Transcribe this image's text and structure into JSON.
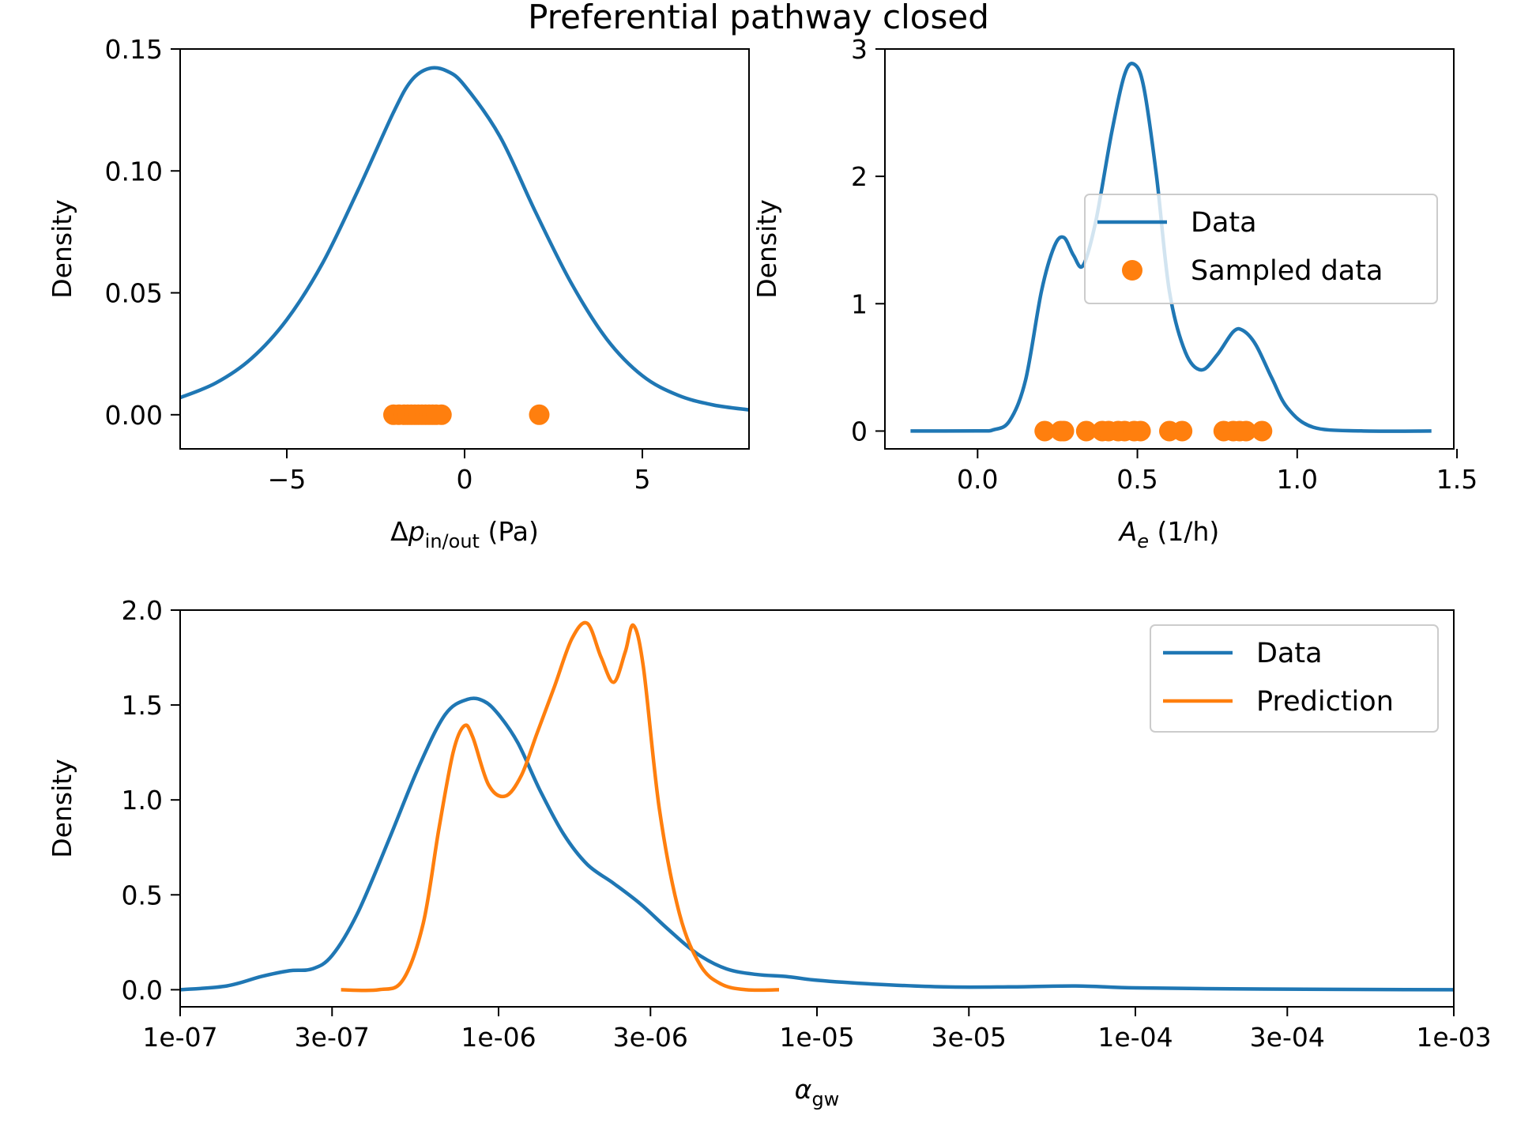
{
  "title": "Preferential pathway closed",
  "colors": {
    "data": "#1f77b4",
    "sampled": "#ff7f0e"
  },
  "chart_data": [
    {
      "type": "line",
      "xlabel": "Δp",
      "xlabel_sub": "in/out",
      "xlabel_unit": " (Pa)",
      "ylabel": "Density",
      "xlim": [
        -8,
        8
      ],
      "ylim": [
        -0.014,
        0.15
      ],
      "xticks": [
        -5,
        0,
        5
      ],
      "xtick_labels": [
        "−5",
        "0",
        "5"
      ],
      "yticks": [
        0,
        0.05,
        0.1,
        0.15
      ],
      "ytick_labels": [
        "0.00",
        "0.05",
        "0.10",
        "0.15"
      ],
      "grid": false,
      "series": [
        {
          "kind": "line",
          "color": "#1f77b4",
          "x": [
            -8,
            -7,
            -6,
            -5,
            -4,
            -3,
            -2,
            -1.5,
            -1,
            -0.5,
            0,
            1,
            2,
            3,
            4,
            5,
            6,
            7,
            8
          ],
          "y": [
            0.007,
            0.013,
            0.023,
            0.039,
            0.062,
            0.092,
            0.124,
            0.137,
            0.142,
            0.141,
            0.135,
            0.114,
            0.083,
            0.054,
            0.031,
            0.016,
            0.008,
            0.004,
            0.002
          ]
        },
        {
          "kind": "scatter",
          "color": "#ff7f0e",
          "x": [
            -2.0,
            -1.85,
            -1.7,
            -1.6,
            -1.5,
            -1.4,
            -1.3,
            -1.2,
            -1.1,
            -1.0,
            -0.9,
            -0.8,
            -0.65,
            2.1
          ],
          "y": [
            0,
            0,
            0,
            0,
            0,
            0,
            0,
            0,
            0,
            0,
            0,
            0,
            0,
            0
          ]
        }
      ]
    },
    {
      "type": "line",
      "xlabel": "A",
      "xlabel_sub": "e",
      "xlabel_unit": " (1/h)",
      "ylabel": "Density",
      "xlim": [
        -0.29,
        1.49
      ],
      "ylim": [
        -0.14,
        3.0
      ],
      "xticks": [
        0,
        0.5,
        1.0,
        1.5
      ],
      "xtick_labels": [
        "0.0",
        "0.5",
        "1.0",
        "1.5"
      ],
      "yticks": [
        0,
        1,
        2,
        3
      ],
      "ytick_labels": [
        "0",
        "1",
        "2",
        "3"
      ],
      "grid": false,
      "legend": {
        "placement": "center-right",
        "entries": [
          "Data",
          "Sampled data"
        ]
      },
      "series": [
        {
          "name": "Data",
          "kind": "line",
          "color": "#1f77b4",
          "x": [
            -0.21,
            0.0,
            0.05,
            0.1,
            0.15,
            0.2,
            0.24,
            0.27,
            0.3,
            0.33,
            0.37,
            0.42,
            0.46,
            0.49,
            0.52,
            0.56,
            0.6,
            0.65,
            0.7,
            0.75,
            0.8,
            0.83,
            0.87,
            0.92,
            0.97,
            1.05,
            1.2,
            1.42
          ],
          "y": [
            0,
            0.001,
            0.01,
            0.08,
            0.4,
            1.1,
            1.45,
            1.52,
            1.38,
            1.3,
            1.65,
            2.35,
            2.8,
            2.88,
            2.7,
            2.0,
            1.1,
            0.62,
            0.48,
            0.6,
            0.78,
            0.79,
            0.68,
            0.42,
            0.18,
            0.03,
            0.001,
            0
          ]
        },
        {
          "name": "Sampled data",
          "kind": "scatter",
          "color": "#ff7f0e",
          "x": [
            0.21,
            0.26,
            0.27,
            0.34,
            0.39,
            0.41,
            0.44,
            0.46,
            0.49,
            0.51,
            0.6,
            0.64,
            0.77,
            0.8,
            0.82,
            0.84,
            0.89
          ],
          "y": [
            0,
            0,
            0,
            0,
            0,
            0,
            0,
            0,
            0,
            0,
            0,
            0,
            0,
            0,
            0,
            0,
            0
          ]
        }
      ]
    },
    {
      "type": "line",
      "xlabel": "α",
      "xlabel_sub": "gw",
      "xlabel_unit": "",
      "ylabel": "Density",
      "x_scale": "log",
      "xlim": [
        1e-07,
        0.001
      ],
      "ylim": [
        -0.09,
        2.0
      ],
      "xticks": [
        1e-07,
        3e-07,
        1e-06,
        3e-06,
        1e-05,
        3e-05,
        0.0001,
        0.0003,
        0.001
      ],
      "xtick_labels": [
        "1e-07",
        "3e-07",
        "1e-06",
        "3e-06",
        "1e-05",
        "3e-05",
        "1e-04",
        "3e-04",
        "1e-03"
      ],
      "yticks": [
        0,
        0.5,
        1.0,
        1.5,
        2.0
      ],
      "ytick_labels": [
        "0.0",
        "0.5",
        "1.0",
        "1.5",
        "2.0"
      ],
      "grid": false,
      "legend": {
        "placement": "upper-right",
        "entries": [
          "Data",
          "Prediction"
        ]
      },
      "series": [
        {
          "name": "Data",
          "kind": "line",
          "color": "#1f77b4",
          "x": [
            1e-07,
            1.4e-07,
            1.8e-07,
            2.2e-07,
            2.6e-07,
            3e-07,
            3.6e-07,
            4.5e-07,
            5.6e-07,
            6.8e-07,
            8e-07,
            9e-07,
            1e-06,
            1.15e-06,
            1.35e-06,
            1.6e-06,
            1.9e-06,
            2.3e-06,
            2.8e-06,
            3.4e-06,
            4.2e-06,
            5.2e-06,
            6.5e-06,
            8e-06,
            1e-05,
            1.5e-05,
            2.5e-05,
            4e-05,
            6.5e-05,
            0.0001,
            0.0002,
            0.0004,
            0.001
          ],
          "y": [
            0.0,
            0.02,
            0.07,
            0.1,
            0.11,
            0.18,
            0.4,
            0.78,
            1.17,
            1.45,
            1.53,
            1.52,
            1.45,
            1.3,
            1.05,
            0.82,
            0.66,
            0.56,
            0.45,
            0.32,
            0.19,
            0.11,
            0.08,
            0.07,
            0.05,
            0.03,
            0.015,
            0.015,
            0.02,
            0.01,
            0.005,
            0.002,
            0.0
          ]
        },
        {
          "name": "Prediction",
          "kind": "line",
          "color": "#ff7f0e",
          "x": [
            3.2e-07,
            4.2e-07,
            5e-07,
            5.8e-07,
            6.5e-07,
            7.2e-07,
            7.8e-07,
            8.3e-07,
            9.3e-07,
            1.05e-06,
            1.18e-06,
            1.32e-06,
            1.5e-06,
            1.7e-06,
            1.9e-06,
            2.1e-06,
            2.3e-06,
            2.5e-06,
            2.65e-06,
            2.85e-06,
            3.2e-06,
            3.7e-06,
            4.3e-06,
            5e-06,
            6e-06,
            7.6e-06
          ],
          "y": [
            0.0,
            0.0,
            0.05,
            0.35,
            0.85,
            1.25,
            1.39,
            1.33,
            1.08,
            1.02,
            1.13,
            1.35,
            1.6,
            1.85,
            1.93,
            1.75,
            1.62,
            1.78,
            1.92,
            1.7,
            0.95,
            0.4,
            0.13,
            0.03,
            0.0,
            0.0
          ]
        }
      ]
    }
  ]
}
